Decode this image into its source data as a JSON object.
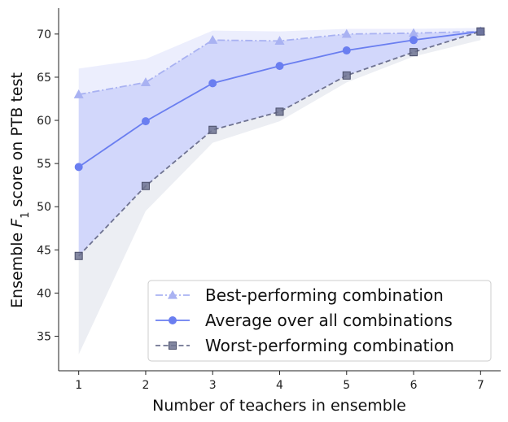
{
  "chart_data": {
    "type": "line",
    "xlabel": "Number of teachers in ensemble",
    "ylabel": "Ensemble F1 score on PTB test",
    "ylabel_main": "Ensemble",
    "ylabel_var": "F",
    "ylabel_sub": "1",
    "ylabel_rest": "score on PTB test",
    "x": [
      1,
      2,
      3,
      4,
      5,
      6,
      7
    ],
    "xlim": [
      0.7,
      7.3
    ],
    "ylim": [
      31,
      73
    ],
    "xticks": [
      1,
      2,
      3,
      4,
      5,
      6,
      7
    ],
    "yticks": [
      35,
      40,
      45,
      50,
      55,
      60,
      65,
      70
    ],
    "legend_position": "lower-right",
    "series": [
      {
        "name": "Best-performing combination",
        "values": [
          63.0,
          64.4,
          69.3,
          69.2,
          70.0,
          70.1,
          70.3
        ],
        "color": "#a9b2f2",
        "marker": "triangle",
        "dash": "dashdot"
      },
      {
        "name": "Average over all combinations",
        "values": [
          54.6,
          59.9,
          64.3,
          66.3,
          68.1,
          69.3,
          70.3
        ],
        "color": "#6a7ef0",
        "marker": "circle",
        "dash": "solid"
      },
      {
        "name": "Worst-performing combination",
        "values": [
          44.3,
          52.4,
          58.9,
          61.0,
          65.2,
          67.9,
          70.3
        ],
        "color": "#6f7391",
        "marker": "square",
        "dash": "dashed"
      }
    ],
    "bands": [
      {
        "upper": [
          66.0,
          67.1,
          70.4,
          70.3,
          70.6,
          70.6,
          70.7
        ],
        "lower": [
          63.0,
          64.4,
          69.3,
          69.2,
          70.0,
          70.1,
          70.3
        ],
        "color": "#eceefd"
      },
      {
        "upper": [
          63.0,
          64.4,
          69.3,
          69.2,
          70.0,
          70.1,
          70.3
        ],
        "lower": [
          44.3,
          52.4,
          58.9,
          61.0,
          65.2,
          67.9,
          70.3
        ],
        "color": "#d2d7fb"
      },
      {
        "upper": [
          44.3,
          52.4,
          58.9,
          61.0,
          65.2,
          67.9,
          70.3
        ],
        "lower": [
          32.9,
          49.5,
          57.4,
          59.9,
          64.4,
          67.4,
          69.3
        ],
        "color": "#eceef3"
      }
    ]
  }
}
